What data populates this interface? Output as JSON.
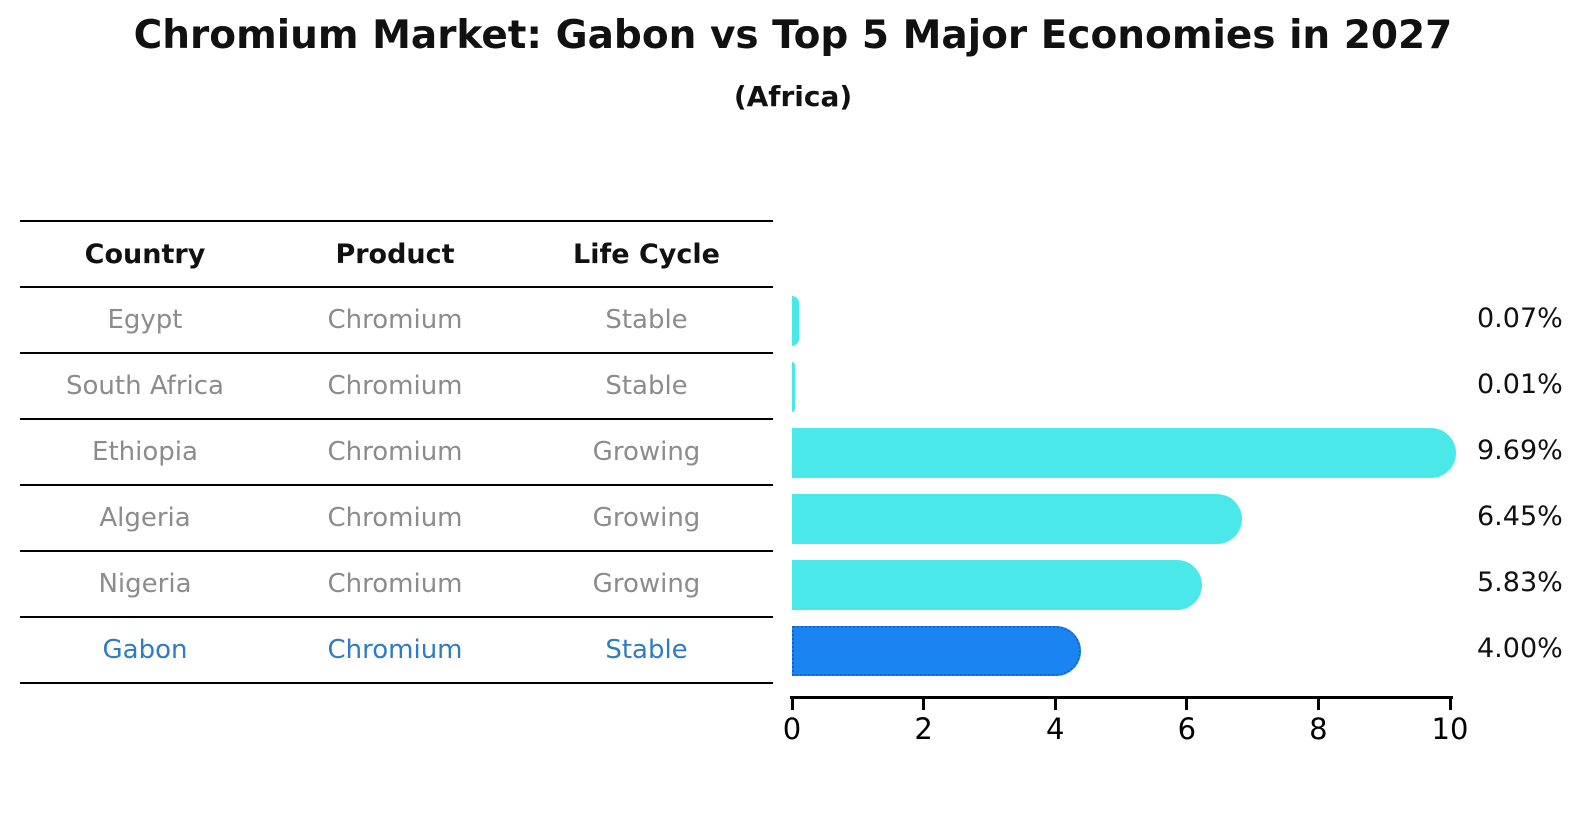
{
  "title": "Chromium Market: Gabon vs Top 5 Major Economies in 2027",
  "subtitle": "(Africa)",
  "table": {
    "headers": [
      "Country",
      "Product",
      "Life Cycle"
    ]
  },
  "chart_data": {
    "type": "bar",
    "orientation": "horizontal",
    "title": "Chromium Market: Gabon vs Top 5 Major Economies in 2027",
    "subtitle": "(Africa)",
    "xlabel": "",
    "ylabel": "",
    "xlim": [
      0,
      10
    ],
    "xticks": [
      0,
      2,
      4,
      6,
      8,
      10
    ],
    "grid": false,
    "legend": "none",
    "categories": [
      "Egypt",
      "South Africa",
      "Ethiopia",
      "Algeria",
      "Nigeria",
      "Gabon"
    ],
    "values": [
      0.07,
      0.01,
      9.69,
      6.45,
      5.83,
      4.0
    ],
    "rows": [
      {
        "country": "Egypt",
        "product": "Chromium",
        "life_cycle": "Stable",
        "value": 0.07,
        "value_label": "0.07%",
        "highlight": false
      },
      {
        "country": "South Africa",
        "product": "Chromium",
        "life_cycle": "Stable",
        "value": 0.01,
        "value_label": "0.01%",
        "highlight": false
      },
      {
        "country": "Ethiopia",
        "product": "Chromium",
        "life_cycle": "Growing",
        "value": 9.69,
        "value_label": "9.69%",
        "highlight": false
      },
      {
        "country": "Algeria",
        "product": "Chromium",
        "life_cycle": "Growing",
        "value": 6.45,
        "value_label": "6.45%",
        "highlight": false
      },
      {
        "country": "Nigeria",
        "product": "Chromium",
        "life_cycle": "Growing",
        "value": 5.83,
        "value_label": "5.83%",
        "highlight": false
      },
      {
        "country": "Gabon",
        "product": "Chromium",
        "life_cycle": "Stable",
        "value": 4.0,
        "value_label": "4.00%",
        "highlight": true
      }
    ],
    "colors": {
      "bar": "#4AE8E8",
      "highlight_bar": "#1A84F0",
      "highlight_border": "#1165CF",
      "row_text": "#8C8C8C",
      "highlight_text": "#2E7BC6",
      "header_text": "#111111",
      "axis": "#000000"
    }
  }
}
